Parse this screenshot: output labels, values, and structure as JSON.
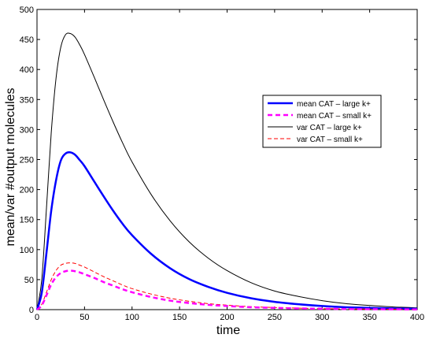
{
  "chart_data": {
    "type": "line",
    "xlabel": "time",
    "ylabel": "mean/var #output molecules",
    "xlim": [
      0,
      400
    ],
    "ylim": [
      0,
      500
    ],
    "xticks": [
      0,
      50,
      100,
      150,
      200,
      250,
      300,
      350,
      400
    ],
    "yticks": [
      0,
      50,
      100,
      150,
      200,
      250,
      300,
      350,
      400,
      450,
      500
    ],
    "grid": false,
    "legend_position": "right",
    "x": [
      0,
      5,
      10,
      15,
      20,
      25,
      30,
      35,
      40,
      45,
      50,
      60,
      70,
      80,
      90,
      100,
      120,
      140,
      160,
      180,
      200,
      225,
      250,
      275,
      300,
      325,
      350,
      375,
      400
    ],
    "series": [
      {
        "name": "mean CAT – large k+",
        "color": "#0000ff",
        "style": "solid",
        "width": "thick",
        "values": [
          0,
          28,
          95,
          165,
          215,
          248,
          260,
          262,
          258,
          249,
          239,
          214,
          189,
          165,
          143,
          124,
          93,
          69,
          51,
          38,
          28,
          19,
          13,
          9,
          6,
          4,
          3,
          2,
          1.5
        ]
      },
      {
        "name": "mean CAT – small k+",
        "color": "#ff00ff",
        "style": "dashed",
        "width": "thick",
        "values": [
          0,
          7,
          24,
          42,
          54,
          61,
          64,
          65,
          64,
          62,
          59,
          53,
          46,
          40,
          34,
          29,
          21,
          15,
          11,
          8,
          6,
          4,
          3,
          2,
          1.5,
          1,
          0.7,
          0.5,
          0.3
        ]
      },
      {
        "name": "var CAT – large k+",
        "color": "#000000",
        "style": "solid",
        "width": "thin",
        "values": [
          0,
          50,
          170,
          295,
          385,
          437,
          458,
          460,
          454,
          441,
          425,
          388,
          350,
          313,
          278,
          246,
          192,
          148,
          113,
          86,
          65,
          45,
          31,
          22,
          15,
          10,
          7,
          4.5,
          3
        ]
      },
      {
        "name": "var CAT – small k+",
        "color": "#ff0000",
        "style": "dashed",
        "width": "thin",
        "values": [
          0,
          9,
          29,
          50,
          65,
          74,
          77,
          78,
          77,
          74,
          71,
          63,
          55,
          48,
          41,
          35,
          26,
          19,
          14,
          10,
          7.5,
          5,
          3.5,
          2.5,
          1.7,
          1.2,
          0.8,
          0.6,
          0.4
        ]
      }
    ]
  }
}
